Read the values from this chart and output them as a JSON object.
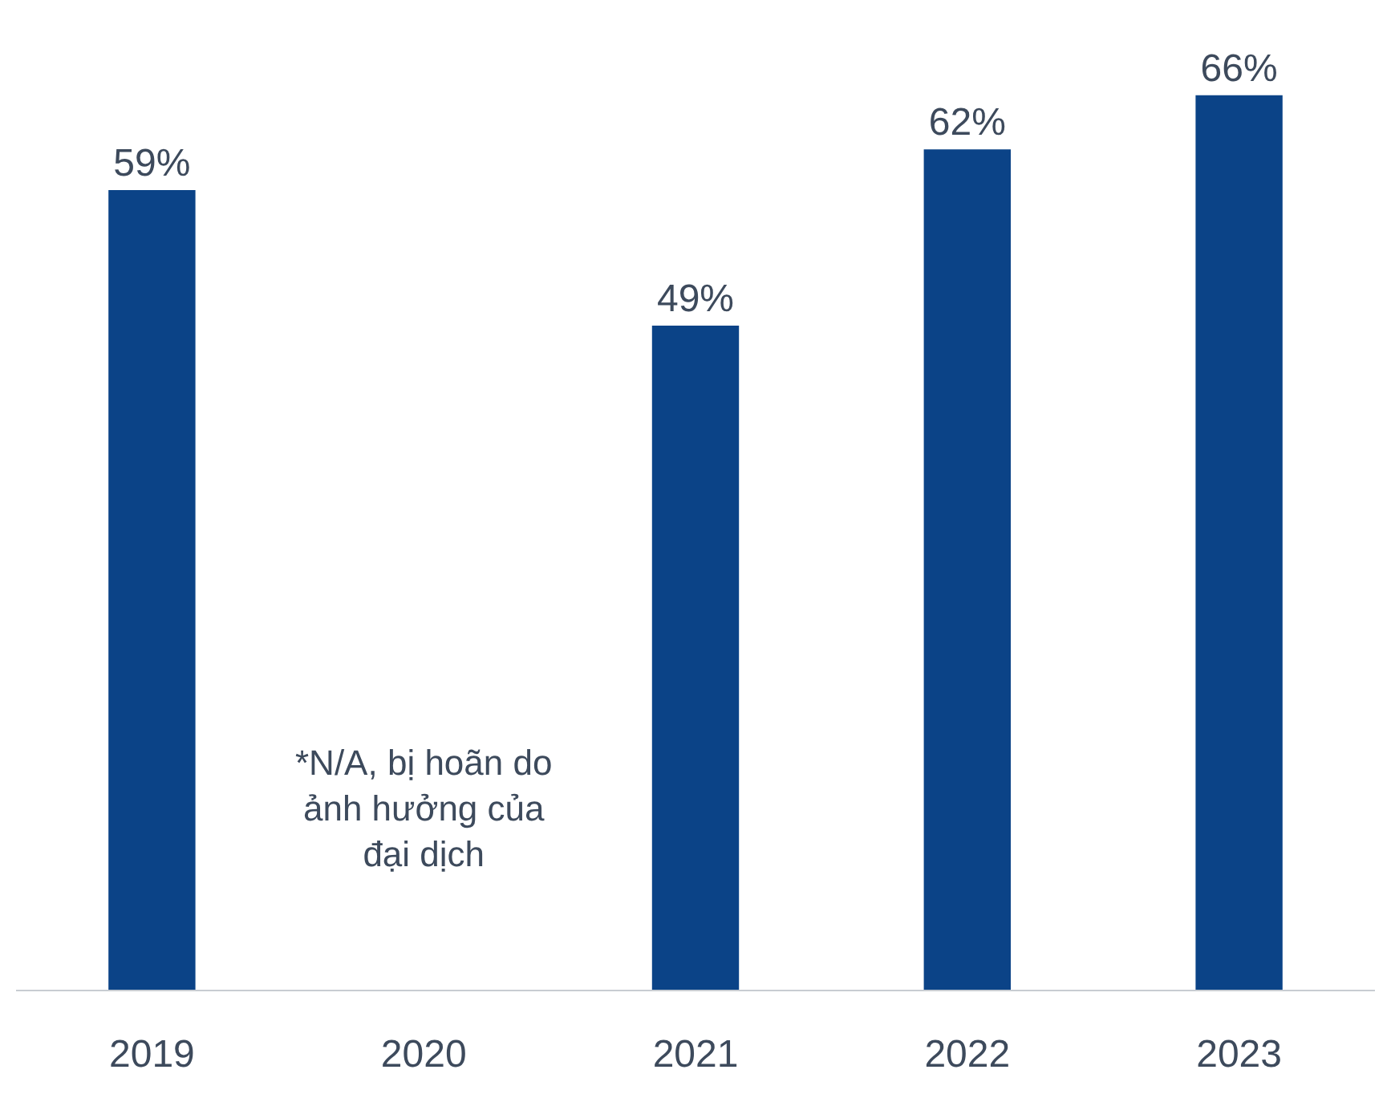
{
  "chart_data": {
    "type": "bar",
    "categories": [
      "2019",
      "2020",
      "2021",
      "2022",
      "2023"
    ],
    "values": [
      59,
      null,
      49,
      62,
      66
    ],
    "color": "#0b4387",
    "value_labels": [
      "59%",
      null,
      "49%",
      "62%",
      "66%"
    ],
    "annotations": [
      "*N/A, bị hoãn do ảnh hưởng của đại dịch"
    ]
  }
}
